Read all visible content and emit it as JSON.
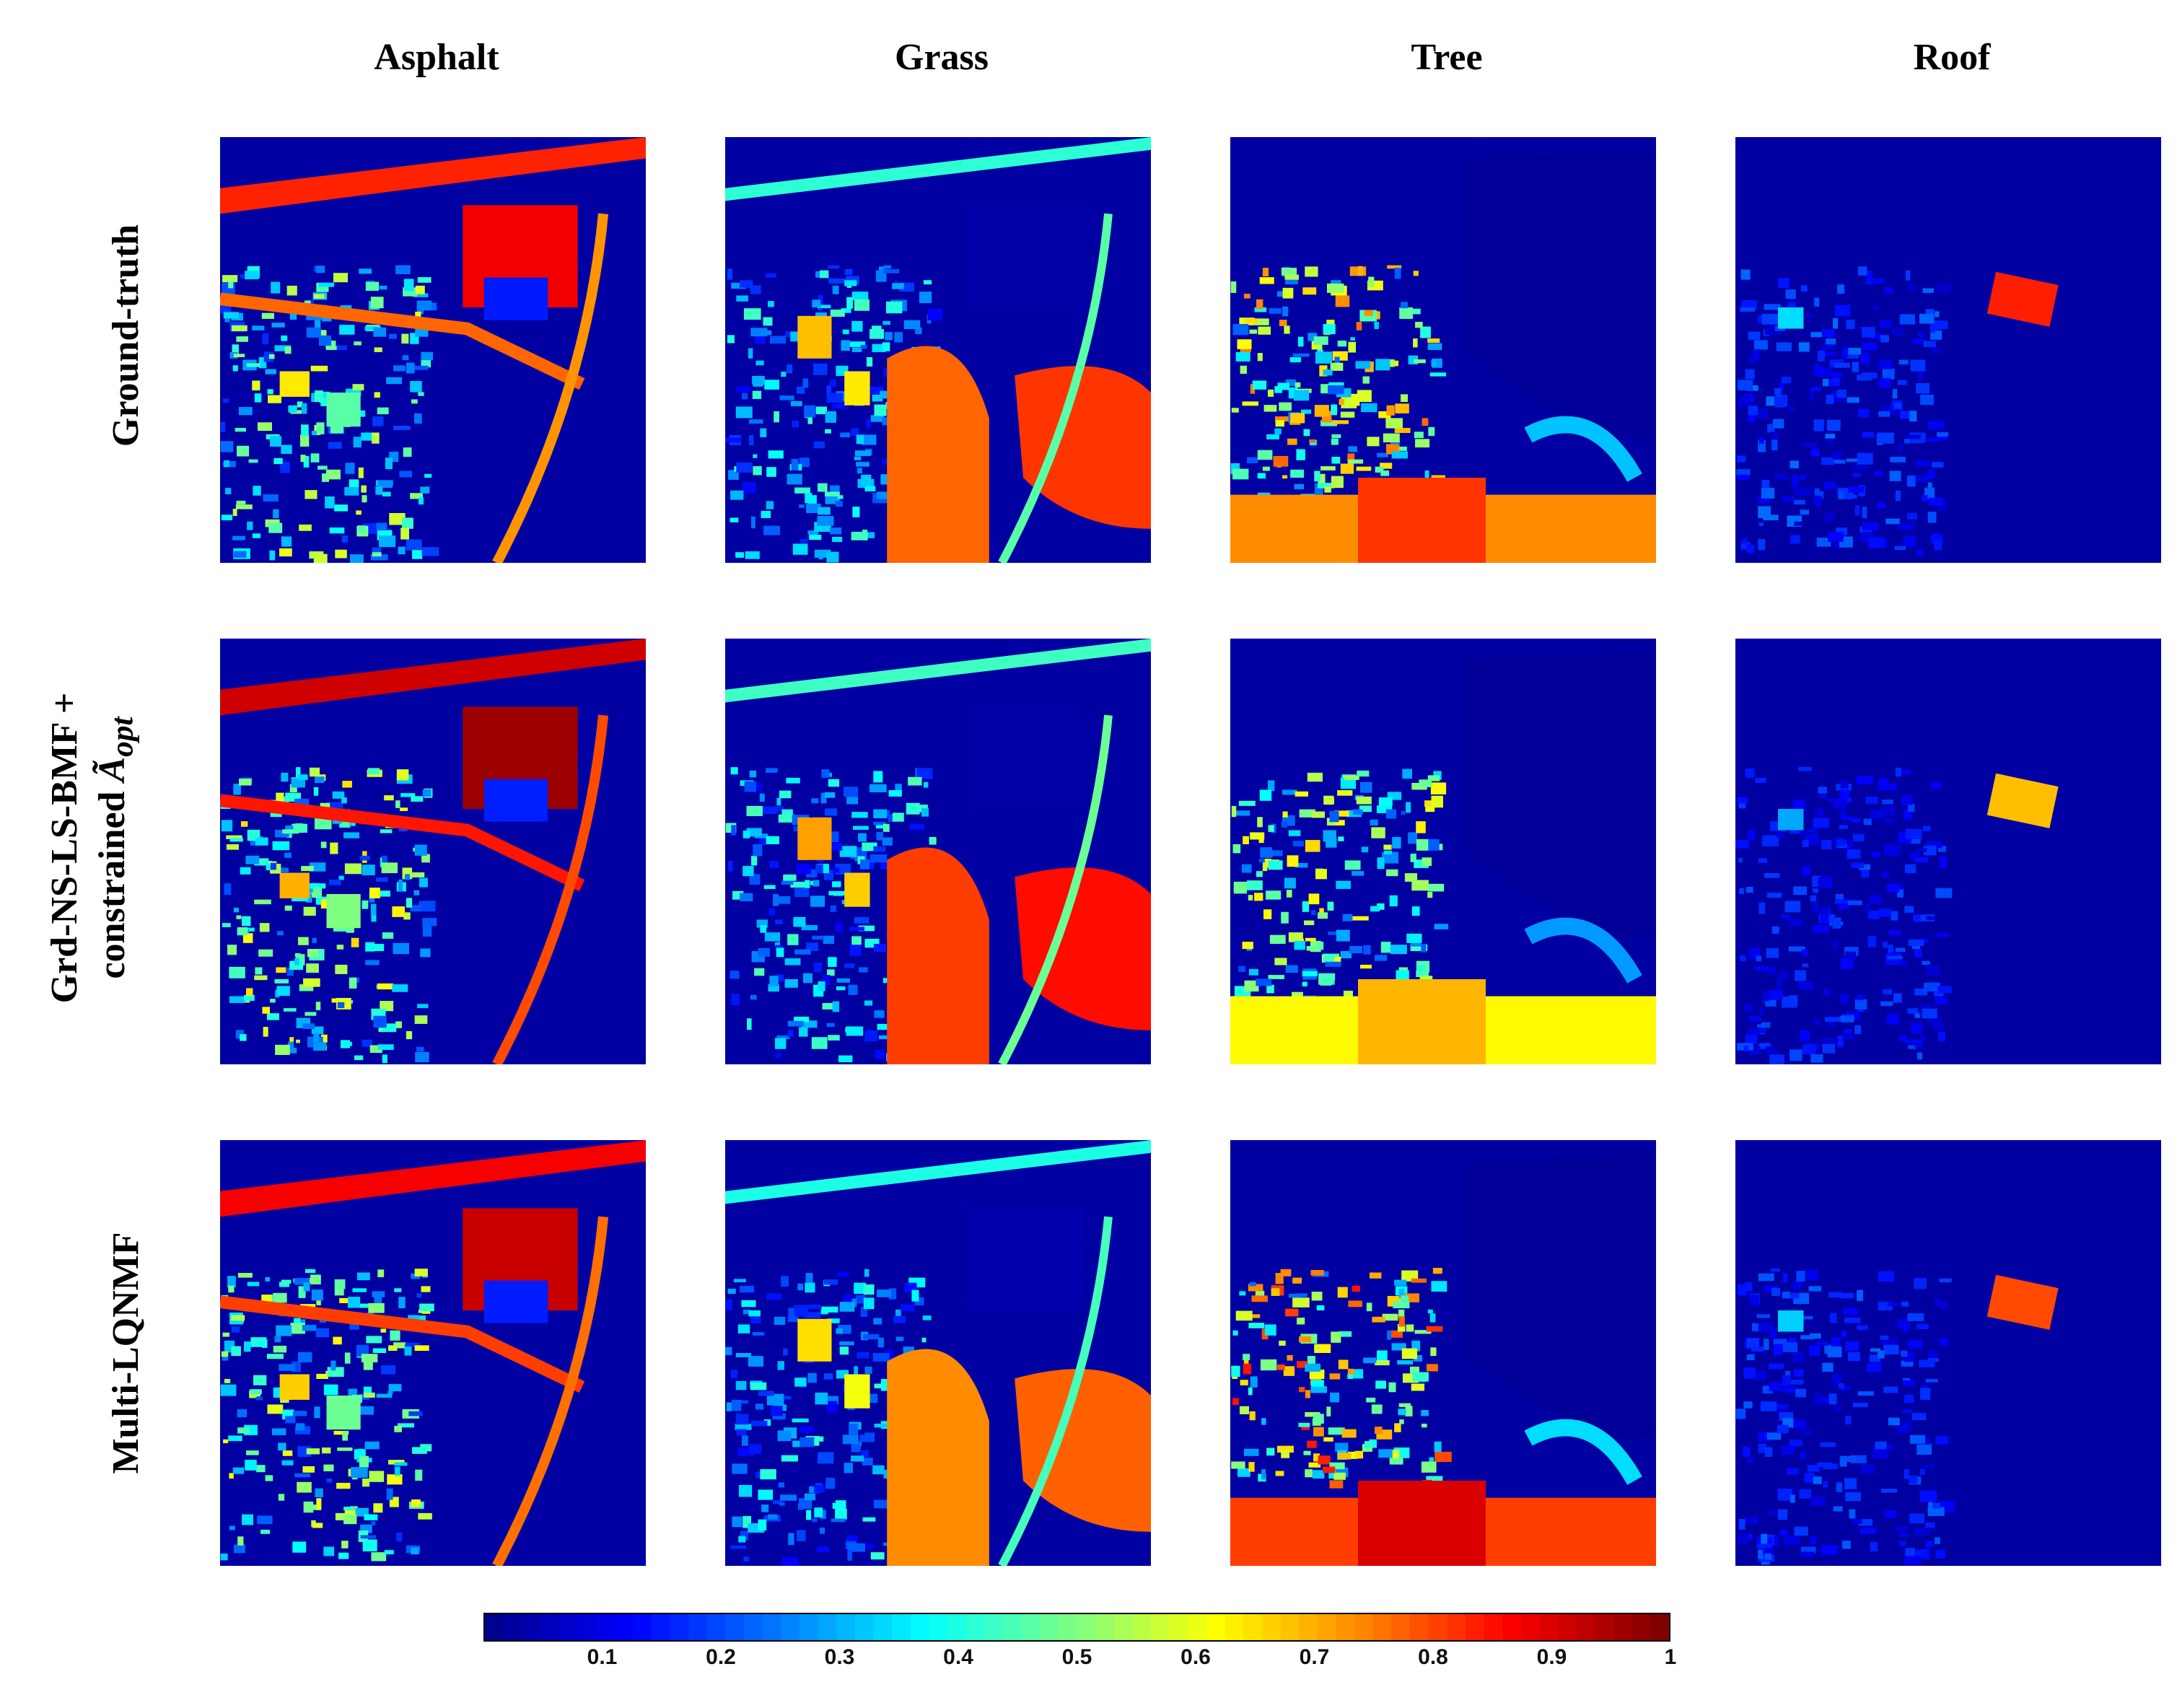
{
  "columns": [
    {
      "id": "asphalt",
      "label": "Asphalt"
    },
    {
      "id": "grass",
      "label": "Grass"
    },
    {
      "id": "tree",
      "label": "Tree"
    },
    {
      "id": "roof",
      "label": "Roof"
    }
  ],
  "rows": [
    {
      "id": "ground-truth",
      "label": "Ground-truth"
    },
    {
      "id": "grd-ns-ls-bmf",
      "label_line1": "Grd-NS-LS-BMF +",
      "label_line2": "constrained ",
      "label_math": "Ã",
      "label_sub": "opt"
    },
    {
      "id": "multi-lqnmf",
      "label": "Multi-LQNMF"
    }
  ],
  "colorbar": {
    "colormap": "jet",
    "range": [
      0,
      1
    ],
    "ticks": [
      "0.1",
      "0.2",
      "0.3",
      "0.4",
      "0.5",
      "0.6",
      "0.7",
      "0.8",
      "0.9",
      "1"
    ],
    "colors": [
      "#00008f",
      "#0000ff",
      "#0080ff",
      "#00ffff",
      "#80ff80",
      "#ffff00",
      "#ff8000",
      "#ff0000",
      "#800000"
    ]
  },
  "panels": [
    {
      "row": "ground-truth",
      "col": "asphalt",
      "scene": "asphalt",
      "strength": 0.9
    },
    {
      "row": "ground-truth",
      "col": "grass",
      "scene": "grass",
      "strength": 0.9
    },
    {
      "row": "ground-truth",
      "col": "tree",
      "scene": "tree",
      "strength": 0.85
    },
    {
      "row": "ground-truth",
      "col": "roof",
      "scene": "roof",
      "strength": 0.95
    },
    {
      "row": "grd-ns-ls-bmf",
      "col": "asphalt",
      "scene": "asphalt",
      "strength": 1.0
    },
    {
      "row": "grd-ns-ls-bmf",
      "col": "grass",
      "scene": "grass",
      "strength": 0.95
    },
    {
      "row": "grd-ns-ls-bmf",
      "col": "tree",
      "scene": "tree",
      "strength": 0.7
    },
    {
      "row": "grd-ns-ls-bmf",
      "col": "roof",
      "scene": "roof",
      "strength": 0.75
    },
    {
      "row": "multi-lqnmf",
      "col": "asphalt",
      "scene": "asphalt",
      "strength": 0.95
    },
    {
      "row": "multi-lqnmf",
      "col": "grass",
      "scene": "grass",
      "strength": 0.85
    },
    {
      "row": "multi-lqnmf",
      "col": "tree",
      "scene": "tree",
      "strength": 0.95
    },
    {
      "row": "multi-lqnmf",
      "col": "roof",
      "scene": "roof",
      "strength": 0.9
    }
  ]
}
